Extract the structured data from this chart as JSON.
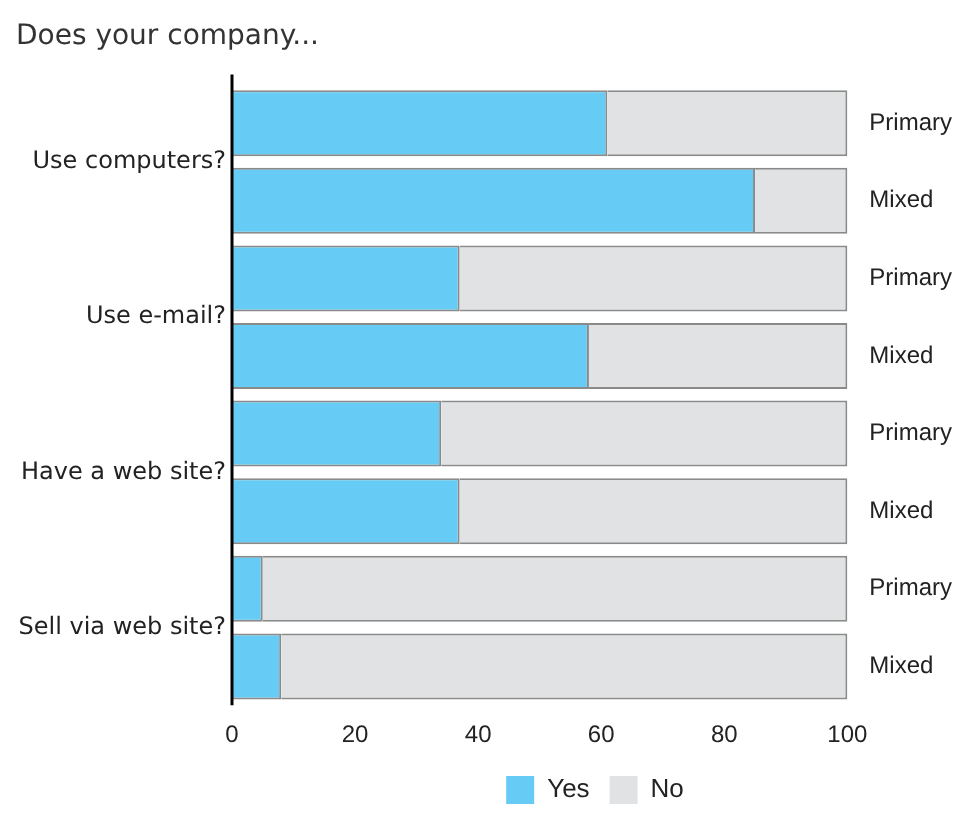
{
  "chart_data": {
    "type": "bar",
    "orientation": "horizontal",
    "stacked": true,
    "title": "Does your company...",
    "categories": [
      "Primary",
      "Mixed",
      "Primary",
      "Mixed",
      "Primary",
      "Mixed",
      "Primary",
      "Mixed"
    ],
    "series": [
      {
        "name": "Yes",
        "color": "#66ccf5",
        "values": [
          61,
          85,
          37,
          58,
          34,
          37,
          5,
          8
        ]
      },
      {
        "name": "No",
        "color": "#e1e2e4",
        "values": [
          39,
          15,
          63,
          42,
          66,
          63,
          95,
          92
        ]
      }
    ],
    "annotations": [
      "Use computers?",
      "Use e-mail?",
      "Have a web site?",
      "Sell via web site?"
    ],
    "xlim": [
      0,
      100
    ],
    "xticks": [
      0,
      20,
      40,
      60,
      80,
      100
    ],
    "grid": false,
    "legend": "bottom"
  }
}
